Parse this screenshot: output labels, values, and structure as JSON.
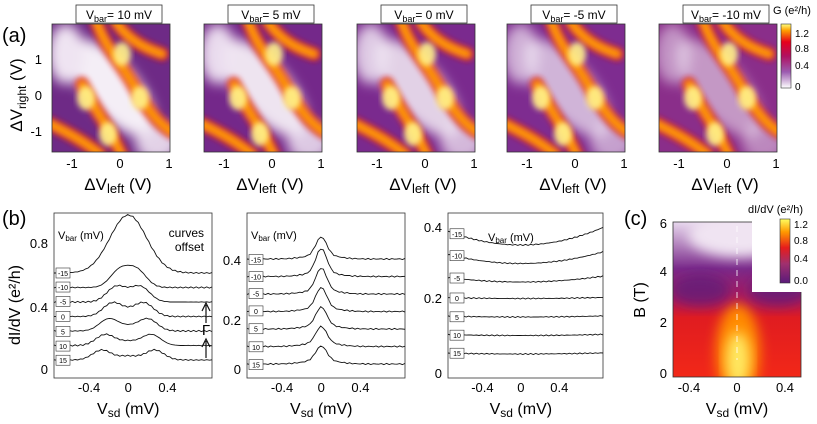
{
  "figure": {
    "panel_labels": [
      "(a)",
      "(b)",
      "(c)"
    ]
  },
  "panel_a": {
    "titles_prefix": "V",
    "titles_sub": "bar",
    "titles_value": [
      "= 10 mV",
      "= 5 mV",
      "= 0 mV",
      "= -5 mV",
      "= -10 mV"
    ],
    "ylabel_main": "ΔV",
    "ylabel_sub": "right",
    "ylabel_unit": " (V)",
    "xlabel_main": "ΔV",
    "xlabel_sub": "left",
    "xlabel_unit": " (V)",
    "x_ticks": [
      "-1",
      "0",
      "1"
    ],
    "y_ticks": [
      "1",
      "0",
      "-1"
    ],
    "colorbar_title": "G (e²/h)",
    "colorbar_ticks": [
      "1.2",
      "0.8",
      "0.4",
      "0"
    ],
    "colors": {
      "low": "#ffffff",
      "mid": "#7b2d8e",
      "high": "#e6001b",
      "peak": "#ffff66"
    }
  },
  "panel_b": {
    "ylabel": "dI/dV (e²/h)",
    "xlabel_main": "V",
    "xlabel_sub": "sd",
    "xlabel_unit": " (mV)",
    "x_ticks": [
      "-0.4",
      "0",
      "0.4"
    ],
    "vbar_label": "V",
    "vbar_sub": "bar",
    "vbar_unit": " (mV)",
    "note": [
      "curves",
      "offset"
    ],
    "gamma": "Γ",
    "left_y_ticks": [
      "0.8",
      "0.4",
      "0"
    ],
    "mid_y_ticks": [
      "0.4",
      "0.2",
      "0"
    ],
    "right_y_ticks": [
      "0.4",
      "0.2",
      "0"
    ],
    "curve_labels": [
      "-15",
      "-10",
      "-5",
      "0",
      "5",
      "10",
      "15"
    ]
  },
  "panel_c": {
    "ylabel": "B (T)",
    "xlabel_main": "V",
    "xlabel_sub": "sd",
    "xlabel_unit": " (mV)",
    "x_ticks": [
      "-0.4",
      "0",
      "0.4"
    ],
    "y_ticks": [
      "6",
      "4",
      "2",
      "0"
    ],
    "colorbar_title": "dI/dV (e²/h)",
    "colorbar_ticks": [
      "1.2",
      "0.8",
      "0.4",
      "0.0"
    ]
  }
}
